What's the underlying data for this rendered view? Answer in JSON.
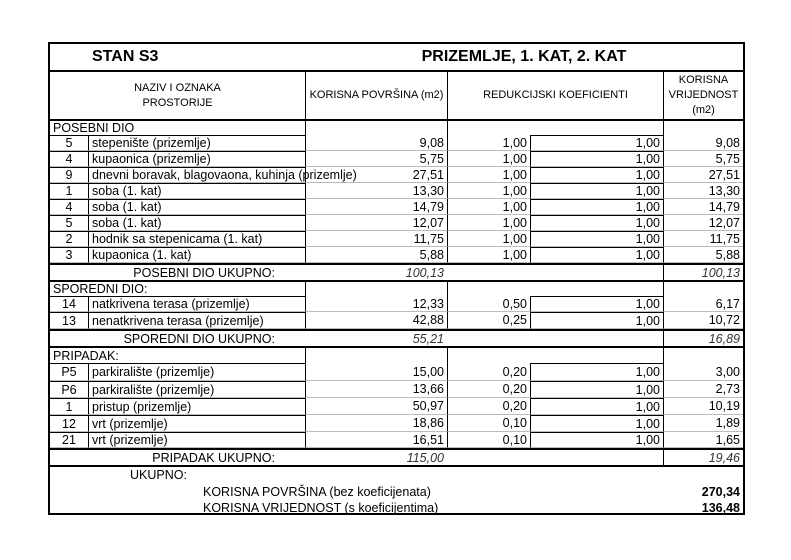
{
  "title_left": "STAN S3",
  "title_right": "PRIZEMLJE, 1. KAT, 2. KAT",
  "headers": {
    "name": "NAZIV I OZNAKA PROSTORIJE",
    "area": "KORISNA POVRŠINA (m2)",
    "coef": "REDUKCIJSKI KOEFICIENTI",
    "value": "KORISNA VRIJEDNOST (m2)"
  },
  "sections": [
    {
      "label": "POSEBNI DIO",
      "rows": [
        {
          "no": "5",
          "name": "stepenište (prizemlje)",
          "area": "9,08",
          "k1": "1,00",
          "k2": "1,00",
          "value": "9,08"
        },
        {
          "no": "4",
          "name": "kupaonica (prizemlje)",
          "area": "5,75",
          "k1": "1,00",
          "k2": "1,00",
          "value": "5,75"
        },
        {
          "no": "9",
          "name": "dnevni boravak, blagovaona, kuhinja (prizemlje)",
          "area": "27,51",
          "k1": "1,00",
          "k2": "1,00",
          "value": "27,51"
        },
        {
          "no": "1",
          "name": "soba (1. kat)",
          "area": "13,30",
          "k1": "1,00",
          "k2": "1,00",
          "value": "13,30"
        },
        {
          "no": "4",
          "name": "soba (1. kat)",
          "area": "14,79",
          "k1": "1,00",
          "k2": "1,00",
          "value": "14,79"
        },
        {
          "no": "5",
          "name": "soba (1. kat)",
          "area": "12,07",
          "k1": "1,00",
          "k2": "1,00",
          "value": "12,07"
        },
        {
          "no": "2",
          "name": "hodnik sa stepenicama (1. kat)",
          "area": "11,75",
          "k1": "1,00",
          "k2": "1,00",
          "value": "11,75"
        },
        {
          "no": "3",
          "name": "kupaonica (1. kat)",
          "area": "5,88",
          "k1": "1,00",
          "k2": "1,00",
          "value": "5,88"
        }
      ],
      "total_label": "POSEBNI DIO UKUPNO:",
      "total_area": "100,13",
      "total_value": "100,13"
    },
    {
      "label": "SPOREDNI DIO:",
      "rows": [
        {
          "no": "14",
          "name": "natkrivena terasa (prizemlje)",
          "area": "12,33",
          "k1": "0,50",
          "k2": "1,00",
          "value": "6,17"
        },
        {
          "no": "13",
          "name": "nenatkrivena terasa (prizemlje)",
          "area": "42,88",
          "k1": "0,25",
          "k2": "1,00",
          "value": "10,72"
        }
      ],
      "total_label": "SPOREDNI DIO UKUPNO:",
      "total_area": "55,21",
      "total_value": "16,89"
    },
    {
      "label": "PRIPADAK:",
      "rows": [
        {
          "no": "P5",
          "name": "parkiralište (prizemlje)",
          "area": "15,00",
          "k1": "0,20",
          "k2": "1,00",
          "value": "3,00"
        },
        {
          "no": "P6",
          "name": "parkiralište (prizemlje)",
          "area": "13,66",
          "k1": "0,20",
          "k2": "1,00",
          "value": "2,73"
        },
        {
          "no": "1",
          "name": "pristup (prizemlje)",
          "area": "50,97",
          "k1": "0,20",
          "k2": "1,00",
          "value": "10,19"
        },
        {
          "no": "12",
          "name": "vrt (prizemlje)",
          "area": "18,86",
          "k1": "0,10",
          "k2": "1,00",
          "value": "1,89"
        },
        {
          "no": "21",
          "name": "vrt (prizemlje)",
          "area": "16,51",
          "k1": "0,10",
          "k2": "1,00",
          "value": "1,65"
        }
      ],
      "total_label": "PRIPADAK UKUPNO:",
      "total_area": "115,00",
      "total_value": "19,46"
    }
  ],
  "summary": {
    "label": "UKUPNO:",
    "area_label": "KORISNA POVRŠINA (bez koeficijenata)",
    "area_value": "270,34",
    "value_label": "KORISNA VRIJEDNOST (s koeficijentima)",
    "value_value": "136,48"
  }
}
